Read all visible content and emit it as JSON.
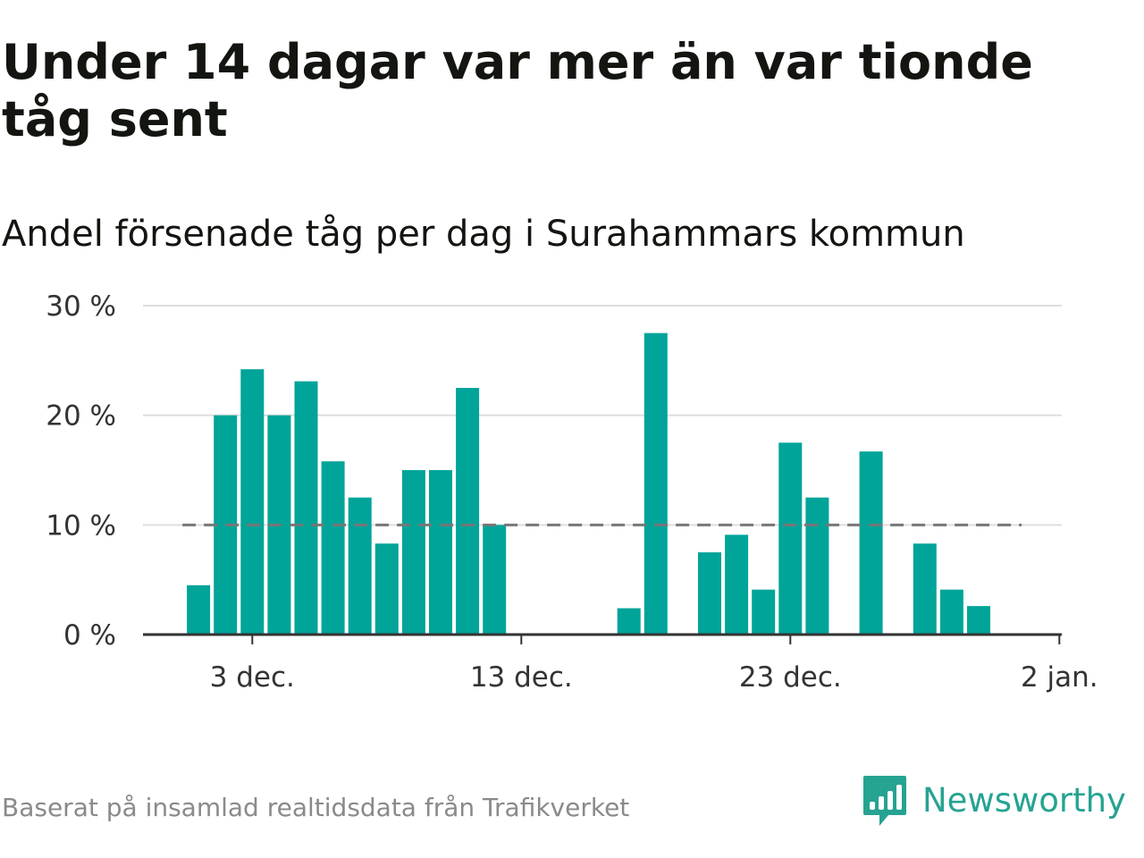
{
  "title": "Under 14 dagar var mer än var tionde tåg sent",
  "subtitle": "Andel försenade tåg per dag i Surahammars kommun",
  "source": "Baserat på insamlad realtidsdata från Trafikverket",
  "brand": {
    "name": "Newsworthy",
    "logo_icon": "newsworthy-chart-bubble-icon",
    "color": "#26a392"
  },
  "colors": {
    "bar": "#00a499",
    "reference_line": "#777777",
    "grid": "#dddddd",
    "axis": "#333333"
  },
  "chart_data": {
    "type": "bar",
    "title": "Andel försenade tåg per dag i Surahammars kommun",
    "xlabel": "",
    "ylabel": "",
    "x_unit": "day",
    "ylim": [
      0,
      30
    ],
    "y_ticks": [
      0,
      10,
      20,
      30
    ],
    "y_tick_labels": [
      "0 %",
      "10 %",
      "20 %",
      "30 %"
    ],
    "x_ticks": [
      "2018-12-03",
      "2018-12-13",
      "2018-12-23",
      "2019-01-02"
    ],
    "x_tick_labels": [
      "3 dec.",
      "13 dec.",
      "23 dec.",
      "2 jan."
    ],
    "x_range": [
      "2018-11-30",
      "2019-01-02"
    ],
    "grid": true,
    "legend": "none",
    "reference_line": {
      "value": 10,
      "style": "dashed",
      "from": "2018-12-01",
      "to": "2018-12-31"
    },
    "dates": [
      "2018-12-01",
      "2018-12-02",
      "2018-12-03",
      "2018-12-04",
      "2018-12-05",
      "2018-12-06",
      "2018-12-07",
      "2018-12-08",
      "2018-12-09",
      "2018-12-10",
      "2018-12-11",
      "2018-12-12",
      "2018-12-13",
      "2018-12-14",
      "2018-12-15",
      "2018-12-16",
      "2018-12-17",
      "2018-12-18",
      "2018-12-19",
      "2018-12-20",
      "2018-12-21",
      "2018-12-22",
      "2018-12-23",
      "2018-12-24",
      "2018-12-25",
      "2018-12-26",
      "2018-12-27",
      "2018-12-28",
      "2018-12-29",
      "2018-12-30"
    ],
    "values": [
      4.5,
      20.0,
      24.2,
      20.0,
      23.1,
      15.8,
      12.5,
      8.3,
      15.0,
      15.0,
      22.5,
      10.0,
      null,
      null,
      null,
      null,
      2.4,
      27.5,
      null,
      7.5,
      9.1,
      4.1,
      17.5,
      12.5,
      null,
      16.7,
      null,
      8.3,
      4.1,
      2.6
    ]
  }
}
